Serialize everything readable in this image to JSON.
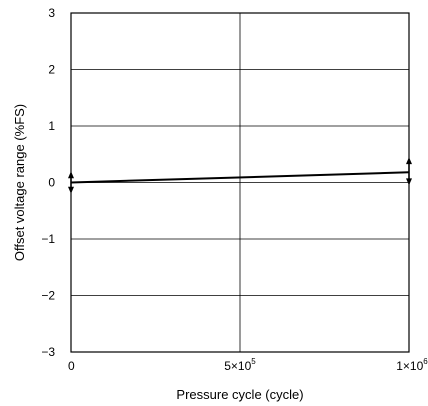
{
  "chart_data": {
    "type": "line",
    "title": "",
    "xlabel": "Pressure cycle (cycle)",
    "ylabel": "Offset voltage range (%FS)",
    "xlim": [
      0,
      1000000
    ],
    "ylim": [
      -3,
      3
    ],
    "grid": true,
    "x_ticks": [
      {
        "value": 0,
        "base": "0",
        "exp": ""
      },
      {
        "value": 500000,
        "base": "5×10",
        "exp": "5"
      },
      {
        "value": 1000000,
        "base": "1×10",
        "exp": "6"
      }
    ],
    "y_ticks": [
      {
        "value": 3,
        "label": "3"
      },
      {
        "value": 2,
        "label": "2"
      },
      {
        "value": 1,
        "label": "1"
      },
      {
        "value": 0,
        "label": "0"
      },
      {
        "value": -1,
        "label": "−1"
      },
      {
        "value": -2,
        "label": "−2"
      },
      {
        "value": -3,
        "label": "−3"
      }
    ],
    "series": [
      {
        "x": [
          0,
          1000000
        ],
        "y": [
          0.0,
          0.18
        ],
        "range_low": [
          -0.2,
          -0.05
        ],
        "range_high": [
          0.2,
          0.45
        ],
        "color": "#000000"
      }
    ]
  }
}
